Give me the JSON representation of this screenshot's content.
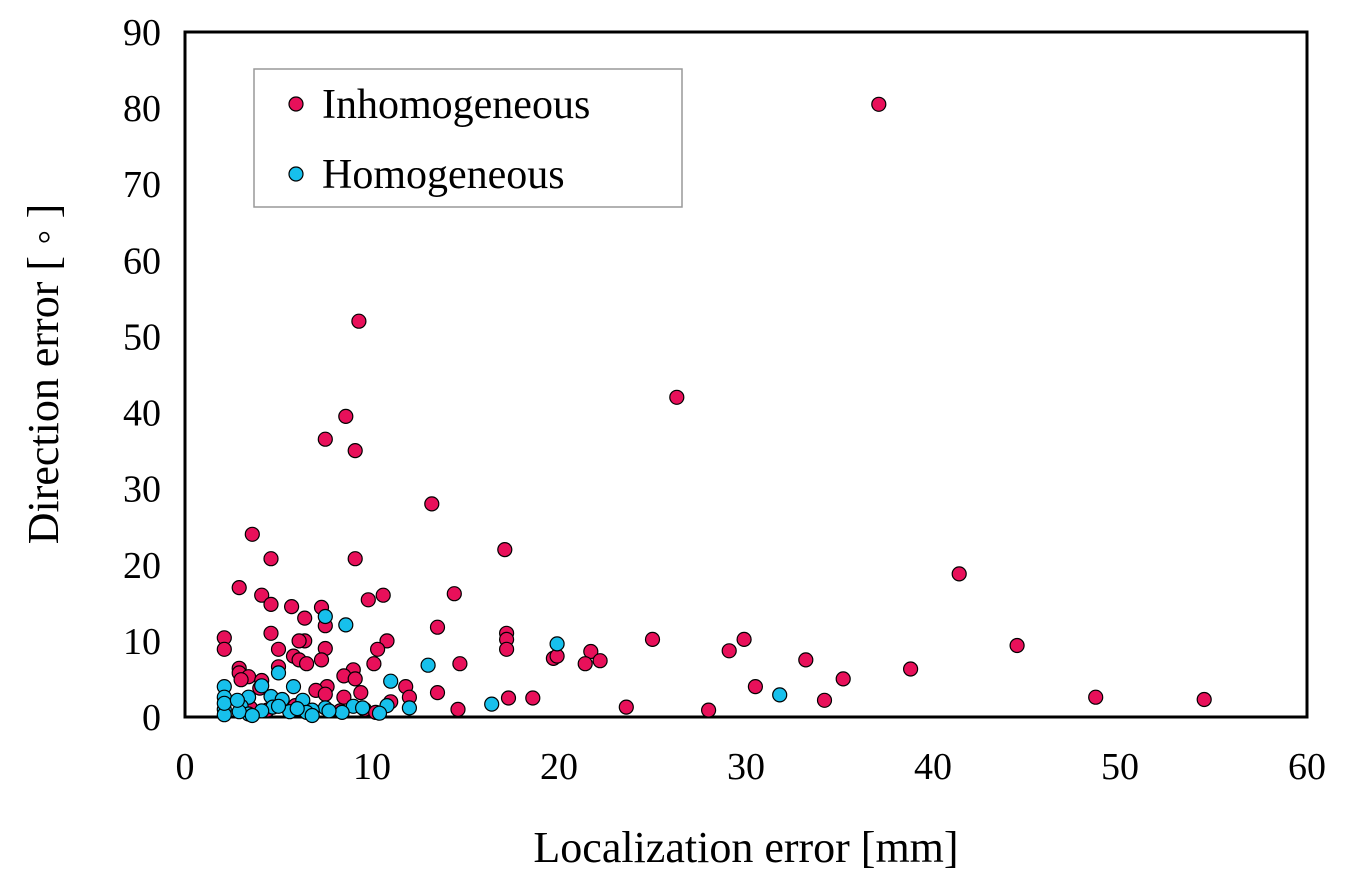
{
  "chart_data": {
    "type": "scatter",
    "xlabel": "Localization error [mm]",
    "ylabel": "Direction error [ ◦ ]",
    "xlim": [
      0,
      60
    ],
    "ylim": [
      0,
      90
    ],
    "xticks": [
      0,
      10,
      20,
      30,
      40,
      50,
      60
    ],
    "yticks": [
      0,
      10,
      20,
      30,
      40,
      50,
      60,
      70,
      80,
      90
    ],
    "grid": false,
    "legend": "top-left",
    "series": [
      {
        "name": "Inhomogeneous",
        "color": "#e8105a",
        "points": [
          [
            37.1,
            80.5
          ],
          [
            9.3,
            52.0
          ],
          [
            26.3,
            42.0
          ],
          [
            8.6,
            39.5
          ],
          [
            7.5,
            36.5
          ],
          [
            9.1,
            35.0
          ],
          [
            13.2,
            28.0
          ],
          [
            3.6,
            24.0
          ],
          [
            17.1,
            22.0
          ],
          [
            4.6,
            20.8
          ],
          [
            9.1,
            20.8
          ],
          [
            41.4,
            18.8
          ],
          [
            2.9,
            17.0
          ],
          [
            4.1,
            16.0
          ],
          [
            10.6,
            16.0
          ],
          [
            14.4,
            16.2
          ],
          [
            9.8,
            15.4
          ],
          [
            4.6,
            14.8
          ],
          [
            5.7,
            14.5
          ],
          [
            7.3,
            14.4
          ],
          [
            6.4,
            13.0
          ],
          [
            7.5,
            12.0
          ],
          [
            13.5,
            11.8
          ],
          [
            4.6,
            11.0
          ],
          [
            17.2,
            11.0
          ],
          [
            2.1,
            10.4
          ],
          [
            6.4,
            10.0
          ],
          [
            6.1,
            10.0
          ],
          [
            10.8,
            10.0
          ],
          [
            17.2,
            10.2
          ],
          [
            25.0,
            10.2
          ],
          [
            29.9,
            10.2
          ],
          [
            44.5,
            9.4
          ],
          [
            2.1,
            8.9
          ],
          [
            5.0,
            8.9
          ],
          [
            7.5,
            9.0
          ],
          [
            10.3,
            8.9
          ],
          [
            17.2,
            8.9
          ],
          [
            21.7,
            8.6
          ],
          [
            29.1,
            8.7
          ],
          [
            5.8,
            8.0
          ],
          [
            19.7,
            7.7
          ],
          [
            19.9,
            8.0
          ],
          [
            22.2,
            7.4
          ],
          [
            33.2,
            7.5
          ],
          [
            6.1,
            7.5
          ],
          [
            7.3,
            7.5
          ],
          [
            10.1,
            7.0
          ],
          [
            14.7,
            7.0
          ],
          [
            21.4,
            7.0
          ],
          [
            5.0,
            6.6
          ],
          [
            2.9,
            6.4
          ],
          [
            6.5,
            7.0
          ],
          [
            9.0,
            6.2
          ],
          [
            38.8,
            6.3
          ],
          [
            2.9,
            5.8
          ],
          [
            3.4,
            5.3
          ],
          [
            4.1,
            4.8
          ],
          [
            8.5,
            5.4
          ],
          [
            9.1,
            5.0
          ],
          [
            35.2,
            5.0
          ],
          [
            3.0,
            4.9
          ],
          [
            7.6,
            4.0
          ],
          [
            11.8,
            4.0
          ],
          [
            30.5,
            4.0
          ],
          [
            4.0,
            3.8
          ],
          [
            7.0,
            3.5
          ],
          [
            9.4,
            3.2
          ],
          [
            13.5,
            3.2
          ],
          [
            7.5,
            3.0
          ],
          [
            8.5,
            2.6
          ],
          [
            17.3,
            2.5
          ],
          [
            18.6,
            2.5
          ],
          [
            48.7,
            2.6
          ],
          [
            54.5,
            2.3
          ],
          [
            34.2,
            2.2
          ],
          [
            11.0,
            2.0
          ],
          [
            12.0,
            2.6
          ],
          [
            23.6,
            1.3
          ],
          [
            14.6,
            1.0
          ],
          [
            28.0,
            0.9
          ],
          [
            9.6,
            1.0
          ],
          [
            10.2,
            0.6
          ],
          [
            3.5,
            1.2
          ],
          [
            5.9,
            1.5
          ],
          [
            8.3,
            0.8
          ],
          [
            4.4,
            0.9
          ]
        ]
      },
      {
        "name": "Homogeneous",
        "color": "#17c0ec",
        "points": [
          [
            7.5,
            13.2
          ],
          [
            8.6,
            12.1
          ],
          [
            19.9,
            9.6
          ],
          [
            13.0,
            6.8
          ],
          [
            5.0,
            5.8
          ],
          [
            11.0,
            4.7
          ],
          [
            4.1,
            4.1
          ],
          [
            5.8,
            4.0
          ],
          [
            2.1,
            4.0
          ],
          [
            31.8,
            2.9
          ],
          [
            2.1,
            2.6
          ],
          [
            3.4,
            2.6
          ],
          [
            4.6,
            2.7
          ],
          [
            5.2,
            2.3
          ],
          [
            6.3,
            2.2
          ],
          [
            16.4,
            1.7
          ],
          [
            12.0,
            1.2
          ],
          [
            10.8,
            1.5
          ],
          [
            9.0,
            1.4
          ],
          [
            7.5,
            1.2
          ],
          [
            6.8,
            0.9
          ],
          [
            4.7,
            1.3
          ],
          [
            3.0,
            1.4
          ],
          [
            2.1,
            1.0
          ],
          [
            2.1,
            0.3
          ],
          [
            3.4,
            0.4
          ],
          [
            4.1,
            0.8
          ],
          [
            5.6,
            0.7
          ],
          [
            6.5,
            0.6
          ],
          [
            8.4,
            0.6
          ],
          [
            9.5,
            1.2
          ],
          [
            2.9,
            0.7
          ],
          [
            3.6,
            0.2
          ],
          [
            6.8,
            0.2
          ],
          [
            10.4,
            0.5
          ],
          [
            2.1,
            1.8
          ],
          [
            2.8,
            2.2
          ],
          [
            5.0,
            1.4
          ],
          [
            6.0,
            1.1
          ],
          [
            7.7,
            0.8
          ]
        ]
      }
    ]
  }
}
